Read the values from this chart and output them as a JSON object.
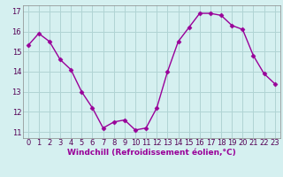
{
  "x": [
    0,
    1,
    2,
    3,
    4,
    5,
    6,
    7,
    8,
    9,
    10,
    11,
    12,
    13,
    14,
    15,
    16,
    17,
    18,
    19,
    20,
    21,
    22,
    23
  ],
  "y": [
    15.3,
    15.9,
    15.5,
    14.6,
    14.1,
    13.0,
    12.2,
    11.2,
    11.5,
    11.6,
    11.1,
    11.2,
    12.2,
    14.0,
    15.5,
    16.2,
    16.9,
    16.9,
    16.8,
    16.3,
    16.1,
    14.8,
    13.9,
    13.4
  ],
  "line_color": "#990099",
  "marker": "D",
  "marker_size": 2.5,
  "bg_color": "#d5f0f0",
  "grid_color": "#b0d4d4",
  "ylabel_ticks": [
    11,
    12,
    13,
    14,
    15,
    16,
    17
  ],
  "xlabel": "Windchill (Refroidissement éolien,°C)",
  "xlim": [
    -0.5,
    23.5
  ],
  "ylim": [
    10.7,
    17.3
  ],
  "xlabel_fontsize": 6.5,
  "tick_fontsize": 6,
  "line_width": 1.0
}
